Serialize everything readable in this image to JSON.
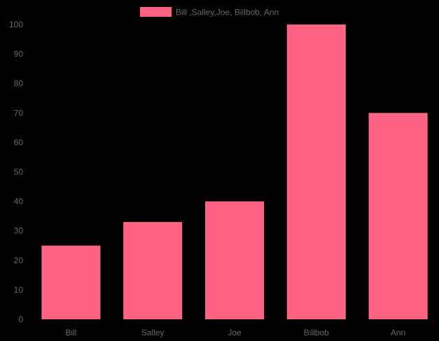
{
  "chart_data": {
    "type": "bar",
    "categories": [
      "Bill",
      "Salley",
      "Joe",
      "Billbob",
      "Ann"
    ],
    "series": [
      {
        "name": "Bill ,Salley,Joe, Billbob, Ann",
        "values": [
          25,
          33,
          40,
          100,
          70
        ],
        "color": "#ff6384"
      }
    ],
    "y_ticks": [
      0,
      10,
      20,
      30,
      40,
      50,
      60,
      70,
      80,
      90,
      100
    ],
    "ylim": [
      0,
      100
    ],
    "grid": false,
    "legend_position": "top-center"
  },
  "colors": {
    "background": "#000000",
    "text": "#666666"
  }
}
